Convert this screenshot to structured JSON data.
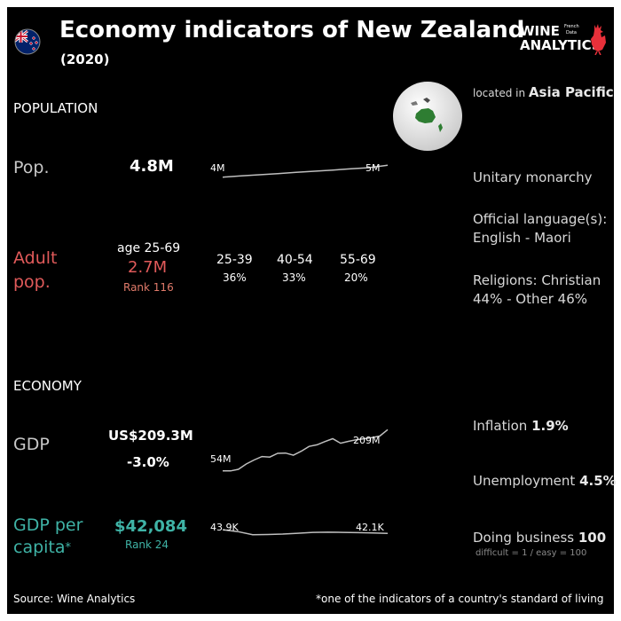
{
  "header": {
    "title": "Economy indicators of New Zealand",
    "subtitle": "(2020)",
    "logo_line1": "WINE",
    "logo_line2": "ANALYTICS",
    "logo_tag1": "French",
    "logo_tag2": "Data"
  },
  "population": {
    "section_label": "POPULATION",
    "pop_label": "Pop.",
    "pop_value": "4.8M",
    "adult_label_line1": "Adult",
    "adult_label_line2": "pop.",
    "adult_age_range": "age 25-69",
    "adult_value": "2.7M",
    "adult_rank": "Rank 116",
    "age_groups": [
      {
        "range": "25-39",
        "share": "36%"
      },
      {
        "range": "40-54",
        "share": "33%"
      },
      {
        "range": "55-69",
        "share": "20%"
      }
    ]
  },
  "economy": {
    "section_label": "ECONOMY",
    "gdp_label": "GDP",
    "gdp_value": "US$209.3M",
    "gdp_growth": "-3.0%",
    "gdpc_label_line1": "GDP per",
    "gdpc_label_line2": "capita",
    "gdpc_asterisk": "*",
    "gdpc_value": "$42,084",
    "gdpc_rank": "Rank 24"
  },
  "country_info": {
    "located_prefix": "located in",
    "region": "Asia Pacific",
    "government": "Unitary monarchy",
    "language_label": "Official language(s):",
    "languages": "English - Maori",
    "religions_line1": "Religions: Christian",
    "religions_line2": "44% - Other 46%",
    "inflation_label": "Inflation",
    "inflation_value": "1.9%",
    "unemployment_label": "Unemployment",
    "unemployment_value": "4.5%",
    "doing_business_label": "Doing business",
    "doing_business_value": "100",
    "doing_business_note": "difficult = 1 / easy = 100"
  },
  "footer": {
    "source": "Source: Wine  Analytics",
    "footnote": "*one of the indicators of a country's standard of living"
  },
  "colors": {
    "background": "#000000",
    "red": "#e05a5a",
    "teal": "#3fb3a6",
    "line": "#bfbfbf",
    "logo_red": "#e8303a"
  },
  "chart_data": [
    {
      "type": "line",
      "title": "",
      "start_label": "4M",
      "end_label": "5M",
      "values": [
        4.0,
        4.1,
        4.2,
        4.3,
        4.4,
        4.5,
        4.6,
        4.7,
        4.8,
        5.0
      ],
      "ylim": [
        3.0,
        6.0
      ],
      "grid": false
    },
    {
      "type": "line",
      "title": "",
      "start_label": "54M",
      "end_label": "209M",
      "values": [
        54,
        54,
        60,
        80,
        95,
        108,
        106,
        120,
        121,
        113,
        128,
        146,
        152,
        164,
        175,
        158,
        165,
        171,
        175,
        179,
        185,
        209
      ],
      "ylim": [
        30,
        230
      ],
      "grid": false
    },
    {
      "type": "line",
      "title": "",
      "start_label": "43.9K",
      "end_label": "42.1K",
      "values": [
        43.9,
        43.0,
        41.5,
        41.6,
        41.8,
        42.2,
        42.6,
        42.7,
        42.6,
        42.5,
        42.3,
        42.1
      ],
      "ylim": [
        35,
        52
      ],
      "grid": false
    }
  ]
}
